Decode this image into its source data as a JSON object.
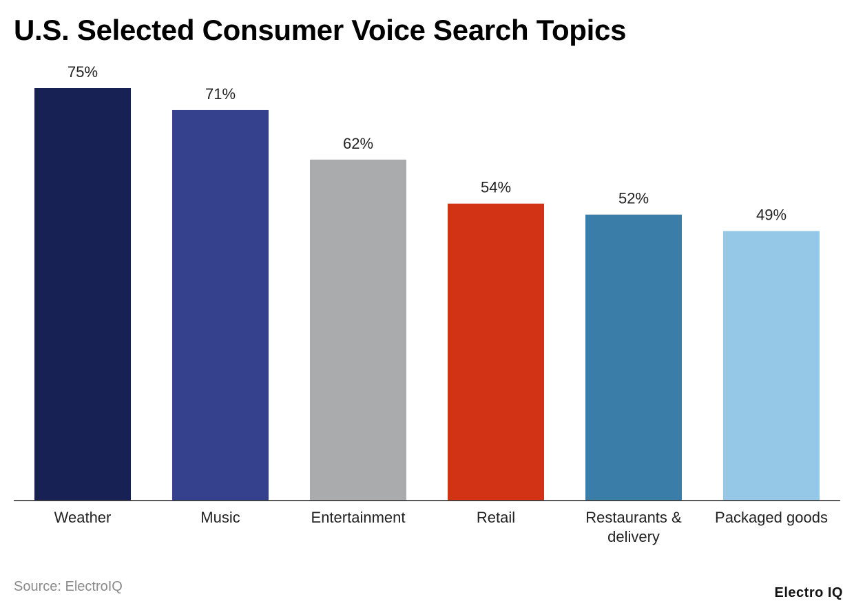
{
  "chart_data": {
    "type": "bar",
    "title": "U.S. Selected Consumer Voice Search Topics",
    "categories": [
      [
        "Weather"
      ],
      [
        "Music"
      ],
      [
        "Entertainment"
      ],
      [
        "Retail"
      ],
      [
        "Restaurants &",
        "delivery"
      ],
      [
        "Packaged goods"
      ]
    ],
    "values": [
      75,
      71,
      62,
      54,
      52,
      49
    ],
    "value_labels": [
      "75%",
      "71%",
      "62%",
      "54%",
      "52%",
      "49%"
    ],
    "value_suffix": "%",
    "colors": [
      "#172154",
      "#35418c",
      "#aaabad",
      "#d33315",
      "#3a7da8",
      "#95c7e6"
    ],
    "ylim": [
      0,
      75
    ],
    "grid": false,
    "xlabel": "",
    "ylabel": ""
  },
  "footer": {
    "source": "Source: ElectroIQ",
    "brand": "Electro IQ"
  }
}
